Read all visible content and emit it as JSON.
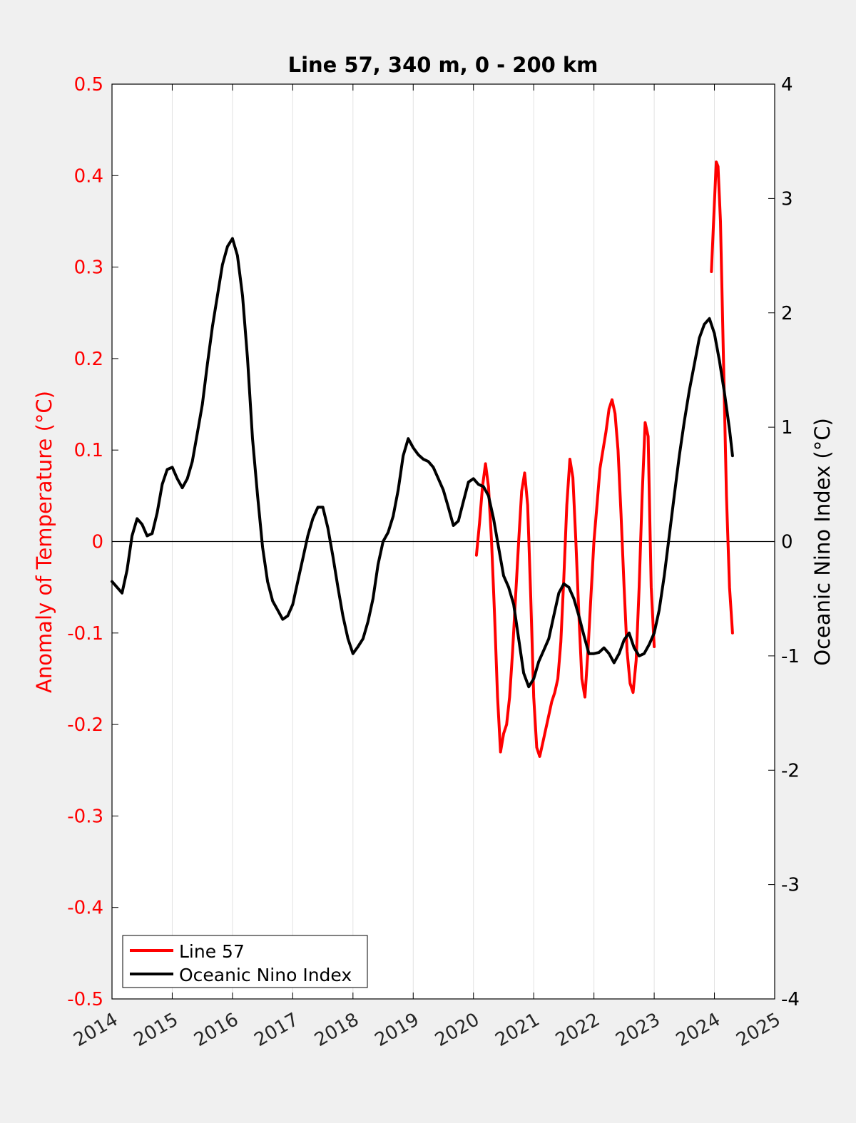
{
  "chart_data": {
    "type": "line",
    "title": "Line 57, 340 m, 0 - 200 km",
    "xlim": [
      2014,
      2025
    ],
    "x_ticks": [
      "2014",
      "2015",
      "2016",
      "2017",
      "2018",
      "2019",
      "2020",
      "2021",
      "2022",
      "2023",
      "2024",
      "2025"
    ],
    "y_left": {
      "label": "Anomaly of Temperature (°C)",
      "lim": [
        -0.5,
        0.5
      ],
      "ticks": [
        "0.5",
        "0.4",
        "0.3",
        "0.2",
        "0.1",
        "0",
        "-0.1",
        "-0.2",
        "-0.3",
        "-0.4",
        "-0.5"
      ],
      "color": "#ff0000"
    },
    "y_right": {
      "label": "Oceanic Nino Index (°C)",
      "lim": [
        -4,
        4
      ],
      "ticks": [
        "4",
        "3",
        "2",
        "1",
        "0",
        "-1",
        "-2",
        "-3",
        "-4"
      ],
      "color": "#000000"
    },
    "grid": "vertical",
    "legend_position": "bottom-left",
    "series": [
      {
        "name": "Line 57",
        "axis": "left",
        "color": "#ff0000",
        "segments": [
          [
            [
              2020.05,
              -0.015
            ],
            [
              2020.1,
              0.02
            ],
            [
              2020.15,
              0.06
            ],
            [
              2020.2,
              0.085
            ],
            [
              2020.25,
              0.06
            ],
            [
              2020.3,
              0.0
            ],
            [
              2020.35,
              -0.08
            ],
            [
              2020.4,
              -0.17
            ],
            [
              2020.45,
              -0.23
            ],
            [
              2020.5,
              -0.21
            ],
            [
              2020.55,
              -0.2
            ],
            [
              2020.6,
              -0.17
            ],
            [
              2020.65,
              -0.12
            ],
            [
              2020.7,
              -0.06
            ],
            [
              2020.75,
              0.0
            ],
            [
              2020.8,
              0.055
            ],
            [
              2020.85,
              0.075
            ],
            [
              2020.9,
              0.04
            ],
            [
              2020.95,
              -0.06
            ],
            [
              2021.0,
              -0.17
            ],
            [
              2021.05,
              -0.225
            ],
            [
              2021.1,
              -0.235
            ],
            [
              2021.15,
              -0.22
            ],
            [
              2021.2,
              -0.205
            ],
            [
              2021.25,
              -0.19
            ],
            [
              2021.3,
              -0.175
            ],
            [
              2021.35,
              -0.165
            ],
            [
              2021.4,
              -0.15
            ],
            [
              2021.45,
              -0.11
            ],
            [
              2021.5,
              -0.04
            ],
            [
              2021.55,
              0.04
            ],
            [
              2021.6,
              0.09
            ],
            [
              2021.65,
              0.07
            ],
            [
              2021.7,
              0.0
            ],
            [
              2021.75,
              -0.08
            ],
            [
              2021.8,
              -0.15
            ],
            [
              2021.85,
              -0.17
            ],
            [
              2021.9,
              -0.12
            ],
            [
              2021.95,
              -0.06
            ],
            [
              2022.0,
              0.0
            ],
            [
              2022.05,
              0.04
            ],
            [
              2022.1,
              0.08
            ],
            [
              2022.15,
              0.1
            ],
            [
              2022.2,
              0.12
            ],
            [
              2022.25,
              0.145
            ],
            [
              2022.3,
              0.155
            ],
            [
              2022.35,
              0.14
            ],
            [
              2022.4,
              0.1
            ],
            [
              2022.45,
              0.03
            ],
            [
              2022.5,
              -0.05
            ],
            [
              2022.55,
              -0.12
            ],
            [
              2022.6,
              -0.155
            ],
            [
              2022.65,
              -0.165
            ],
            [
              2022.7,
              -0.13
            ],
            [
              2022.75,
              -0.05
            ],
            [
              2022.8,
              0.05
            ],
            [
              2022.85,
              0.13
            ],
            [
              2022.9,
              0.115
            ],
            [
              2022.95,
              -0.05
            ],
            [
              2023.0,
              -0.115
            ]
          ],
          [
            [
              2023.95,
              0.295
            ],
            [
              2024.0,
              0.37
            ],
            [
              2024.03,
              0.415
            ],
            [
              2024.06,
              0.41
            ],
            [
              2024.1,
              0.35
            ],
            [
              2024.15,
              0.2
            ],
            [
              2024.2,
              0.05
            ],
            [
              2024.25,
              -0.05
            ],
            [
              2024.3,
              -0.1
            ]
          ]
        ]
      },
      {
        "name": "Oceanic Nino Index",
        "axis": "right",
        "color": "#000000",
        "segments": [
          [
            [
              2014.0,
              -0.35
            ],
            [
              2014.083,
              -0.4
            ],
            [
              2014.167,
              -0.45
            ],
            [
              2014.25,
              -0.25
            ],
            [
              2014.333,
              0.05
            ],
            [
              2014.417,
              0.2
            ],
            [
              2014.5,
              0.15
            ],
            [
              2014.583,
              0.05
            ],
            [
              2014.667,
              0.07
            ],
            [
              2014.75,
              0.25
            ],
            [
              2014.833,
              0.5
            ],
            [
              2014.917,
              0.63
            ],
            [
              2015.0,
              0.65
            ],
            [
              2015.083,
              0.55
            ],
            [
              2015.167,
              0.47
            ],
            [
              2015.25,
              0.55
            ],
            [
              2015.333,
              0.7
            ],
            [
              2015.417,
              0.95
            ],
            [
              2015.5,
              1.2
            ],
            [
              2015.583,
              1.55
            ],
            [
              2015.667,
              1.88
            ],
            [
              2015.75,
              2.15
            ],
            [
              2015.833,
              2.42
            ],
            [
              2015.917,
              2.58
            ],
            [
              2016.0,
              2.65
            ],
            [
              2016.083,
              2.5
            ],
            [
              2016.167,
              2.15
            ],
            [
              2016.25,
              1.6
            ],
            [
              2016.333,
              0.9
            ],
            [
              2016.417,
              0.4
            ],
            [
              2016.5,
              -0.05
            ],
            [
              2016.583,
              -0.35
            ],
            [
              2016.667,
              -0.52
            ],
            [
              2016.75,
              -0.6
            ],
            [
              2016.833,
              -0.68
            ],
            [
              2016.917,
              -0.65
            ],
            [
              2017.0,
              -0.55
            ],
            [
              2017.083,
              -0.35
            ],
            [
              2017.167,
              -0.15
            ],
            [
              2017.25,
              0.05
            ],
            [
              2017.333,
              0.2
            ],
            [
              2017.417,
              0.3
            ],
            [
              2017.5,
              0.3
            ],
            [
              2017.583,
              0.12
            ],
            [
              2017.667,
              -0.13
            ],
            [
              2017.75,
              -0.4
            ],
            [
              2017.833,
              -0.65
            ],
            [
              2017.917,
              -0.85
            ],
            [
              2018.0,
              -0.98
            ],
            [
              2018.083,
              -0.92
            ],
            [
              2018.167,
              -0.85
            ],
            [
              2018.25,
              -0.7
            ],
            [
              2018.333,
              -0.5
            ],
            [
              2018.417,
              -0.2
            ],
            [
              2018.5,
              0.0
            ],
            [
              2018.583,
              0.08
            ],
            [
              2018.667,
              0.22
            ],
            [
              2018.75,
              0.45
            ],
            [
              2018.833,
              0.75
            ],
            [
              2018.917,
              0.9
            ],
            [
              2019.0,
              0.82
            ],
            [
              2019.083,
              0.76
            ],
            [
              2019.167,
              0.72
            ],
            [
              2019.25,
              0.7
            ],
            [
              2019.333,
              0.65
            ],
            [
              2019.417,
              0.55
            ],
            [
              2019.5,
              0.45
            ],
            [
              2019.583,
              0.3
            ],
            [
              2019.667,
              0.14
            ],
            [
              2019.75,
              0.18
            ],
            [
              2019.833,
              0.35
            ],
            [
              2019.917,
              0.52
            ],
            [
              2020.0,
              0.55
            ],
            [
              2020.083,
              0.5
            ],
            [
              2020.167,
              0.48
            ],
            [
              2020.25,
              0.4
            ],
            [
              2020.333,
              0.2
            ],
            [
              2020.417,
              -0.05
            ],
            [
              2020.5,
              -0.3
            ],
            [
              2020.583,
              -0.4
            ],
            [
              2020.667,
              -0.55
            ],
            [
              2020.75,
              -0.85
            ],
            [
              2020.833,
              -1.15
            ],
            [
              2020.917,
              -1.27
            ],
            [
              2021.0,
              -1.2
            ],
            [
              2021.083,
              -1.05
            ],
            [
              2021.167,
              -0.95
            ],
            [
              2021.25,
              -0.85
            ],
            [
              2021.333,
              -0.65
            ],
            [
              2021.417,
              -0.45
            ],
            [
              2021.5,
              -0.37
            ],
            [
              2021.583,
              -0.4
            ],
            [
              2021.667,
              -0.5
            ],
            [
              2021.75,
              -0.65
            ],
            [
              2021.833,
              -0.82
            ],
            [
              2021.917,
              -0.98
            ],
            [
              2022.0,
              -0.98
            ],
            [
              2022.083,
              -0.97
            ],
            [
              2022.167,
              -0.93
            ],
            [
              2022.25,
              -0.98
            ],
            [
              2022.333,
              -1.06
            ],
            [
              2022.417,
              -0.98
            ],
            [
              2022.5,
              -0.86
            ],
            [
              2022.583,
              -0.8
            ],
            [
              2022.667,
              -0.93
            ],
            [
              2022.75,
              -1.0
            ],
            [
              2022.833,
              -0.98
            ],
            [
              2022.917,
              -0.9
            ],
            [
              2023.0,
              -0.8
            ],
            [
              2023.083,
              -0.6
            ],
            [
              2023.167,
              -0.3
            ],
            [
              2023.25,
              0.05
            ],
            [
              2023.333,
              0.4
            ],
            [
              2023.417,
              0.75
            ],
            [
              2023.5,
              1.05
            ],
            [
              2023.583,
              1.32
            ],
            [
              2023.667,
              1.55
            ],
            [
              2023.75,
              1.78
            ],
            [
              2023.833,
              1.9
            ],
            [
              2023.917,
              1.95
            ],
            [
              2024.0,
              1.82
            ],
            [
              2024.083,
              1.58
            ],
            [
              2024.167,
              1.3
            ],
            [
              2024.25,
              0.98
            ],
            [
              2024.3,
              0.75
            ]
          ]
        ]
      }
    ]
  }
}
